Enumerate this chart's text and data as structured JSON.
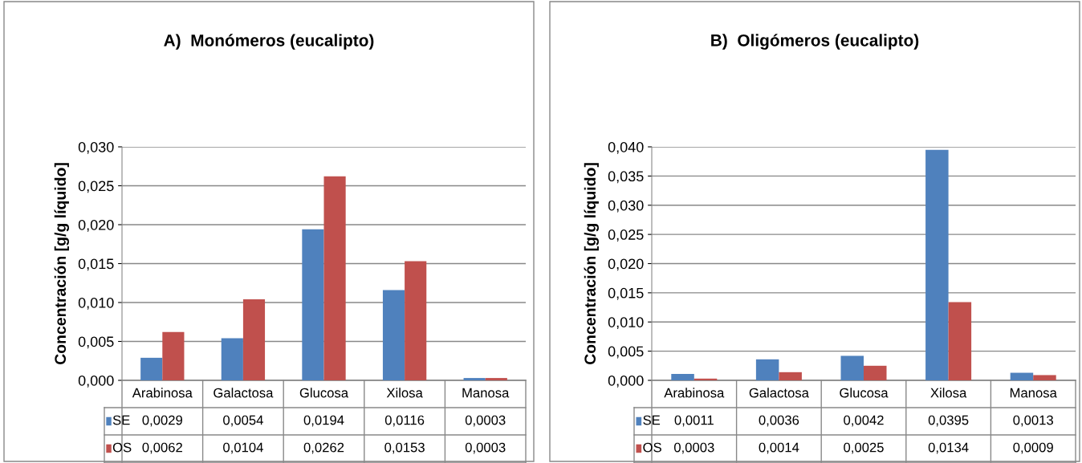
{
  "chart_data": [
    {
      "type": "bar",
      "title": "A)  Monómeros (eucalipto)",
      "ylabel": "Concentración [g/g líquido]",
      "categories": [
        "Arabinosa",
        "Galactosa",
        "Glucosa",
        "Xilosa",
        "Manosa"
      ],
      "series": [
        {
          "name": "SE",
          "color": "#4f81bd",
          "values": [
            0.0029,
            0.0054,
            0.0194,
            0.0116,
            0.0003
          ],
          "value_labels": [
            "0,0029",
            "0,0054",
            "0,0194",
            "0,0116",
            "0,0003"
          ]
        },
        {
          "name": "OS",
          "color": "#c0504d",
          "values": [
            0.0062,
            0.0104,
            0.0262,
            0.0153,
            0.0003
          ],
          "value_labels": [
            "0,0062",
            "0,0104",
            "0,0262",
            "0,0153",
            "0,0003"
          ]
        }
      ],
      "ylim": [
        0,
        0.03
      ],
      "yticks": [
        {
          "value": 0,
          "label": "0,000"
        },
        {
          "value": 0.005,
          "label": "0,005"
        },
        {
          "value": 0.01,
          "label": "0,010"
        },
        {
          "value": 0.015,
          "label": "0,015"
        },
        {
          "value": 0.02,
          "label": "0,020"
        },
        {
          "value": 0.025,
          "label": "0,025"
        },
        {
          "value": 0.03,
          "label": "0,030"
        }
      ],
      "grid": "y",
      "legend": "bottom"
    },
    {
      "type": "bar",
      "title": "B)  Oligómeros (eucalipto)",
      "ylabel": "Concentración [g/g líquido]",
      "categories": [
        "Arabinosa",
        "Galactosa",
        "Glucosa",
        "Xilosa",
        "Manosa"
      ],
      "series": [
        {
          "name": "SE",
          "color": "#4f81bd",
          "values": [
            0.0011,
            0.0036,
            0.0042,
            0.0395,
            0.0013
          ],
          "value_labels": [
            "0,0011",
            "0,0036",
            "0,0042",
            "0,0395",
            "0,0013"
          ]
        },
        {
          "name": "OS",
          "color": "#c0504d",
          "values": [
            0.0003,
            0.0014,
            0.0025,
            0.0134,
            0.0009
          ],
          "value_labels": [
            "0,0003",
            "0,0014",
            "0,0025",
            "0,0134",
            "0,0009"
          ]
        }
      ],
      "ylim": [
        0,
        0.04
      ],
      "yticks": [
        {
          "value": 0,
          "label": "0,000"
        },
        {
          "value": 0.005,
          "label": "0,005"
        },
        {
          "value": 0.01,
          "label": "0,010"
        },
        {
          "value": 0.015,
          "label": "0,015"
        },
        {
          "value": 0.02,
          "label": "0,020"
        },
        {
          "value": 0.025,
          "label": "0,025"
        },
        {
          "value": 0.03,
          "label": "0,030"
        },
        {
          "value": 0.035,
          "label": "0,035"
        },
        {
          "value": 0.04,
          "label": "0,040"
        }
      ],
      "grid": "y",
      "legend": "bottom"
    }
  ]
}
